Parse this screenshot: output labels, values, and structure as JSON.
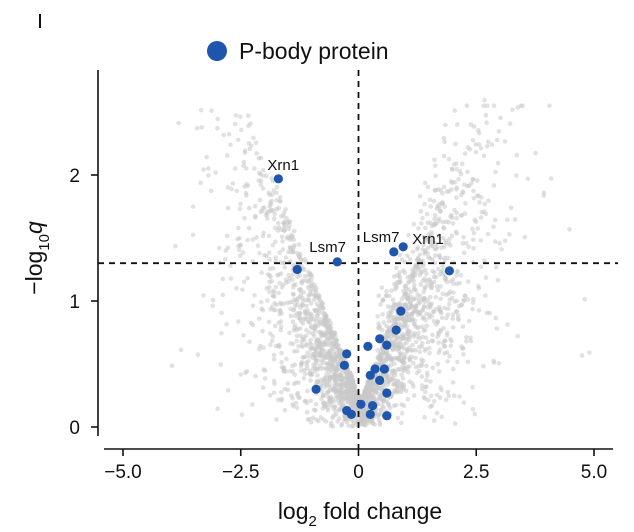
{
  "chart_data": {
    "type": "scatter",
    "title": "",
    "xlabel": {
      "base": "log",
      "sub": "2",
      "rest": " fold change"
    },
    "ylabel": {
      "pre": "−log",
      "sub": "10",
      "var": "q"
    },
    "xlim": [
      -5.5,
      5.5
    ],
    "ylim": [
      -0.1,
      2.8
    ],
    "x_ticks": [
      -5.0,
      -2.5,
      0,
      2.5,
      5.0
    ],
    "x_tick_labels": [
      "−5.0",
      "−2.5",
      "0",
      "2.5",
      "5.0"
    ],
    "y_ticks": [
      0,
      1,
      2
    ],
    "y_tick_labels": [
      "0",
      "1",
      "2"
    ],
    "threshold_lines": {
      "x": 0,
      "y": 1.3
    },
    "legend": {
      "label": "P-body protein",
      "placement": "top-center"
    },
    "colors": {
      "highlight": "#1f56ad",
      "background": "#c8c8c8",
      "axis": "#111111"
    },
    "background_series": {
      "name": "all proteins",
      "description_only": true
    },
    "series": [
      {
        "name": "P-body protein",
        "points": [
          {
            "x": -1.7,
            "y": 1.97
          },
          {
            "x": -1.3,
            "y": 1.25
          },
          {
            "x": -0.45,
            "y": 1.31
          },
          {
            "x": 0.75,
            "y": 1.39
          },
          {
            "x": 0.95,
            "y": 1.43
          },
          {
            "x": 1.93,
            "y": 1.24
          },
          {
            "x": 0.9,
            "y": 0.92
          },
          {
            "x": 0.8,
            "y": 0.77
          },
          {
            "x": 0.45,
            "y": 0.7
          },
          {
            "x": 0.6,
            "y": 0.65
          },
          {
            "x": 0.2,
            "y": 0.64
          },
          {
            "x": -0.25,
            "y": 0.58
          },
          {
            "x": -0.3,
            "y": 0.49
          },
          {
            "x": 0.35,
            "y": 0.46
          },
          {
            "x": 0.55,
            "y": 0.46
          },
          {
            "x": 0.25,
            "y": 0.41
          },
          {
            "x": 0.45,
            "y": 0.37
          },
          {
            "x": -0.9,
            "y": 0.3
          },
          {
            "x": 0.6,
            "y": 0.27
          },
          {
            "x": 0.05,
            "y": 0.18
          },
          {
            "x": 0.3,
            "y": 0.17
          },
          {
            "x": -0.25,
            "y": 0.13
          },
          {
            "x": -0.15,
            "y": 0.1
          },
          {
            "x": 0.25,
            "y": 0.1
          },
          {
            "x": 0.6,
            "y": 0.09
          }
        ]
      }
    ],
    "annotations": [
      {
        "text": "Xrn1",
        "x": -1.7,
        "y": 1.97
      },
      {
        "text": "Lsm7",
        "x": -0.45,
        "y": 1.31
      },
      {
        "text": "Lsm7",
        "x": 0.75,
        "y": 1.39
      },
      {
        "text": "Xrn1",
        "x": 0.95,
        "y": 1.43
      }
    ]
  }
}
